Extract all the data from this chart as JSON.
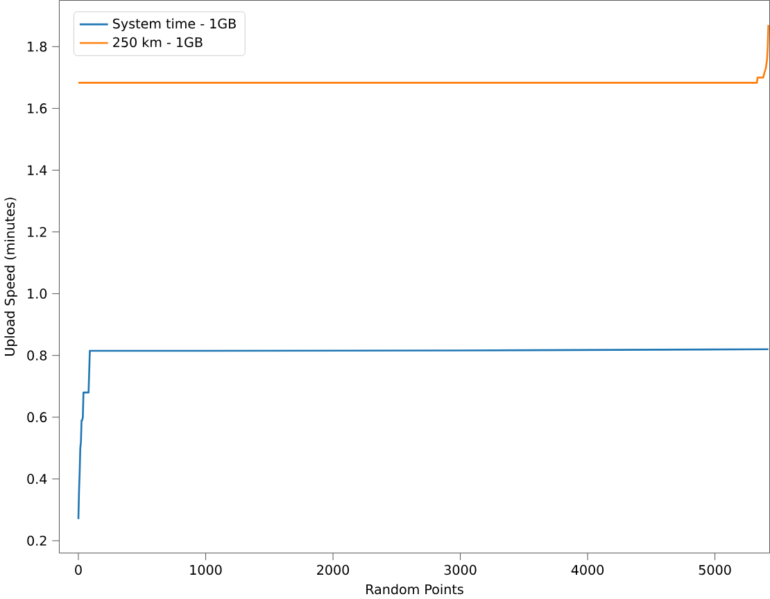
{
  "chart_data": {
    "type": "line",
    "xlabel": "Random Points",
    "ylabel": "Upload Speed (minutes)",
    "xlim": [
      -150,
      5430
    ],
    "ylim": [
      0.16,
      1.95
    ],
    "xticks": [
      0,
      1000,
      2000,
      3000,
      4000,
      5000
    ],
    "yticks": [
      0.2,
      0.4,
      0.6,
      0.8,
      {
        "value": 1.0,
        "label": "1.0"
      },
      1.2,
      1.4,
      1.6,
      1.8
    ],
    "legend": "top left",
    "grid": false,
    "series": [
      {
        "name": "System time - 1GB",
        "color": "#1f77b4",
        "x": [
          0,
          5,
          10,
          15,
          20,
          25,
          30,
          35,
          40,
          60,
          80,
          90,
          100,
          1000,
          3000,
          5420
        ],
        "values": [
          0.27,
          0.36,
          0.42,
          0.5,
          0.52,
          0.59,
          0.59,
          0.6,
          0.68,
          0.68,
          0.68,
          0.815,
          0.815,
          0.815,
          0.816,
          0.82
        ]
      },
      {
        "name": "250 km - 1GB",
        "color": "#ff7f0e",
        "x": [
          0,
          1000,
          3000,
          5330,
          5335,
          5380,
          5385,
          5400,
          5410,
          5415,
          5420
        ],
        "values": [
          1.683,
          1.683,
          1.683,
          1.683,
          1.7,
          1.7,
          1.71,
          1.73,
          1.76,
          1.8,
          1.87
        ]
      }
    ]
  }
}
